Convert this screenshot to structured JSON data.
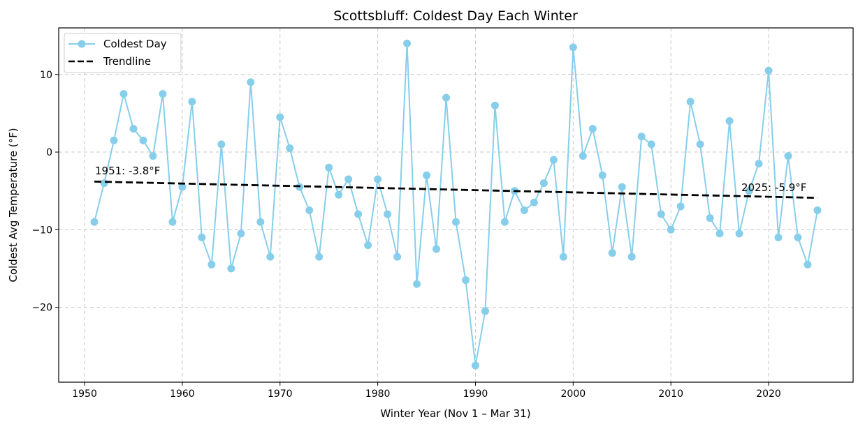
{
  "chart_data": {
    "type": "line",
    "title": "Scottsbluff: Coldest Day Each Winter",
    "xlabel": "Winter Year (Nov 1 – Mar 31)",
    "ylabel": "Coldest Avg Temperature (°F)",
    "xlim": [
      1947.35,
      2028.65
    ],
    "ylim": [
      -29.65,
      16.0
    ],
    "xticks": [
      1950,
      1960,
      1970,
      1980,
      1990,
      2000,
      2010,
      2020
    ],
    "yticks": [
      -20,
      -10,
      0,
      10
    ],
    "ytick_labels": [
      "−20",
      "−10",
      "0",
      "10"
    ],
    "grid": true,
    "legend_position": "top-left",
    "x": [
      1951,
      1952,
      1953,
      1954,
      1955,
      1956,
      1957,
      1958,
      1959,
      1960,
      1961,
      1962,
      1963,
      1964,
      1965,
      1966,
      1967,
      1968,
      1969,
      1970,
      1971,
      1972,
      1973,
      1974,
      1975,
      1976,
      1977,
      1978,
      1979,
      1980,
      1981,
      1982,
      1983,
      1984,
      1985,
      1986,
      1987,
      1988,
      1989,
      1990,
      1991,
      1992,
      1993,
      1994,
      1995,
      1996,
      1997,
      1998,
      1999,
      2000,
      2001,
      2002,
      2003,
      2004,
      2005,
      2006,
      2007,
      2008,
      2009,
      2010,
      2011,
      2012,
      2013,
      2014,
      2015,
      2016,
      2017,
      2018,
      2019,
      2020,
      2021,
      2022,
      2023,
      2024,
      2025
    ],
    "series": [
      {
        "name": "Coldest Day",
        "color": "#87ceeb",
        "values": [
          -9,
          -4,
          1.5,
          7.5,
          3,
          1.5,
          -0.5,
          7.5,
          -9,
          -4.5,
          6.5,
          -11,
          -14.5,
          1,
          -15,
          -10.5,
          9,
          -9,
          -13.5,
          4.5,
          0.5,
          -4.5,
          -7.5,
          -13.5,
          -2,
          -5.5,
          -3.5,
          -8,
          -12,
          -3.5,
          -8,
          -13.5,
          14,
          -17,
          -3,
          -12.5,
          7,
          -9,
          -16.5,
          -27.5,
          -20.5,
          6,
          -9,
          -5,
          -7.5,
          -6.5,
          -4,
          -1,
          -13.5,
          13.5,
          -0.5,
          3,
          -3,
          -13,
          -4.5,
          -13.5,
          2,
          1,
          -8,
          -10,
          -7,
          6.5,
          1,
          -8.5,
          -10.5,
          4,
          -10.5,
          -5,
          -1.5,
          10.5,
          -11,
          -0.5,
          -11,
          -14.5,
          -7.5
        ]
      },
      {
        "name": "Trendline",
        "color": "#000000",
        "style": "dashed",
        "x": [
          1951,
          2025
        ],
        "values": [
          -3.8,
          -5.9
        ]
      }
    ],
    "annotations": [
      {
        "text": "1951: -3.8°F",
        "x": 1951,
        "y": -3.8
      },
      {
        "text": "2025: -5.9°F",
        "x": 2025,
        "y": -5.9
      }
    ]
  }
}
